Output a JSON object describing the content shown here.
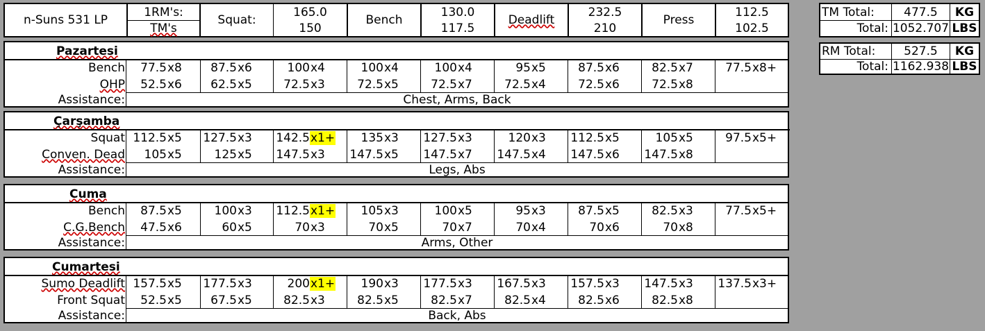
{
  "header": {
    "program": "n-Suns 531 LP",
    "rm_label": "1RM's:",
    "tm_label": "TM's",
    "lifts": [
      {
        "name": "Squat:",
        "rm": "165.0",
        "tm": "150"
      },
      {
        "name": "Bench",
        "rm": "130.0",
        "tm": "117.5"
      },
      {
        "name": "Deadlift",
        "rm": "232.5",
        "tm": "210"
      },
      {
        "name": "Press",
        "rm": "112.5",
        "tm": "102.5"
      }
    ]
  },
  "totals": {
    "tm": {
      "total_label": "TM Total:",
      "kg": "477.5",
      "kg_unit": "KG",
      "lbs_label": "Total:",
      "lbs": "1052.707",
      "lbs_unit": "LBS"
    },
    "rm": {
      "total_label": "RM Total:",
      "kg": "527.5",
      "kg_unit": "KG",
      "lbs_label": "Total:",
      "lbs": "1162.938",
      "lbs_unit": "LBS"
    }
  },
  "assistance_label": "Assistance:",
  "days": [
    {
      "name": "Pazartesi",
      "rows": [
        {
          "label": "Bench",
          "sets": [
            [
              "77.5",
              "x8"
            ],
            [
              "87.5",
              "x6"
            ],
            [
              "100",
              "x4"
            ],
            [
              "100",
              "x4"
            ],
            [
              "100",
              "x4"
            ],
            [
              "95",
              "x5"
            ],
            [
              "87.5",
              "x6"
            ],
            [
              "82.5",
              "x7"
            ],
            [
              "77.5",
              "x8+"
            ]
          ]
        },
        {
          "label": "OHP",
          "sets": [
            [
              "52.5",
              "x6"
            ],
            [
              "62.5",
              "x5"
            ],
            [
              "72.5",
              "x3"
            ],
            [
              "72.5",
              "x5"
            ],
            [
              "72.5",
              "x7"
            ],
            [
              "72.5",
              "x4"
            ],
            [
              "72.5",
              "x6"
            ],
            [
              "72.5",
              "x8"
            ]
          ]
        }
      ],
      "assistance": "Chest, Arms, Back"
    },
    {
      "name": "Çarşamba",
      "rows": [
        {
          "label": "Squat",
          "sets": [
            [
              "112.5",
              "x5"
            ],
            [
              "127.5",
              "x3"
            ],
            [
              "142.5",
              "x1+"
            ],
            [
              "135",
              "x3"
            ],
            [
              "127.5",
              "x3"
            ],
            [
              "120",
              "x3"
            ],
            [
              "112.5",
              "x5"
            ],
            [
              "105",
              "x5"
            ],
            [
              "97.5",
              "x5+"
            ]
          ]
        },
        {
          "label": "Conven. Dead",
          "sets": [
            [
              "105",
              "x5"
            ],
            [
              "125",
              "x5"
            ],
            [
              "147.5",
              "x3"
            ],
            [
              "147.5",
              "x5"
            ],
            [
              "147.5",
              "x7"
            ],
            [
              "147.5",
              "x4"
            ],
            [
              "147.5",
              "x6"
            ],
            [
              "147.5",
              "x8"
            ]
          ]
        }
      ],
      "assistance": "Legs, Abs"
    },
    {
      "name": "Cuma",
      "rows": [
        {
          "label": "Bench",
          "sets": [
            [
              "87.5",
              "x5"
            ],
            [
              "100",
              "x3"
            ],
            [
              "112.5",
              "x1+"
            ],
            [
              "105",
              "x3"
            ],
            [
              "100",
              "x5"
            ],
            [
              "95",
              "x3"
            ],
            [
              "87.5",
              "x5"
            ],
            [
              "82.5",
              "x3"
            ],
            [
              "77.5",
              "x5+"
            ]
          ]
        },
        {
          "label": "C.G.Bench",
          "sets": [
            [
              "47.5",
              "x6"
            ],
            [
              "60",
              "x5"
            ],
            [
              "70",
              "x3"
            ],
            [
              "70",
              "x5"
            ],
            [
              "70",
              "x7"
            ],
            [
              "70",
              "x4"
            ],
            [
              "70",
              "x6"
            ],
            [
              "70",
              "x8"
            ]
          ]
        }
      ],
      "assistance": "Arms, Other"
    },
    {
      "name": "Cumartesi",
      "rows": [
        {
          "label": "Sumo Deadlift",
          "sets": [
            [
              "157.5",
              "x5"
            ],
            [
              "177.5",
              "x3"
            ],
            [
              "200",
              "x1+"
            ],
            [
              "190",
              "x3"
            ],
            [
              "177.5",
              "x3"
            ],
            [
              "167.5",
              "x3"
            ],
            [
              "157.5",
              "x3"
            ],
            [
              "147.5",
              "x3"
            ],
            [
              "137.5",
              "x3+"
            ]
          ]
        },
        {
          "label": "Front Squat",
          "sets": [
            [
              "52.5",
              "x5"
            ],
            [
              "67.5",
              "x5"
            ],
            [
              "82.5",
              "x3"
            ],
            [
              "82.5",
              "x5"
            ],
            [
              "82.5",
              "x7"
            ],
            [
              "82.5",
              "x4"
            ],
            [
              "82.5",
              "x6"
            ],
            [
              "82.5",
              "x8"
            ]
          ]
        }
      ],
      "assistance": "Back, Abs"
    }
  ],
  "colors": {
    "highlight": "#ffff00",
    "background": "#a0a0a0"
  }
}
